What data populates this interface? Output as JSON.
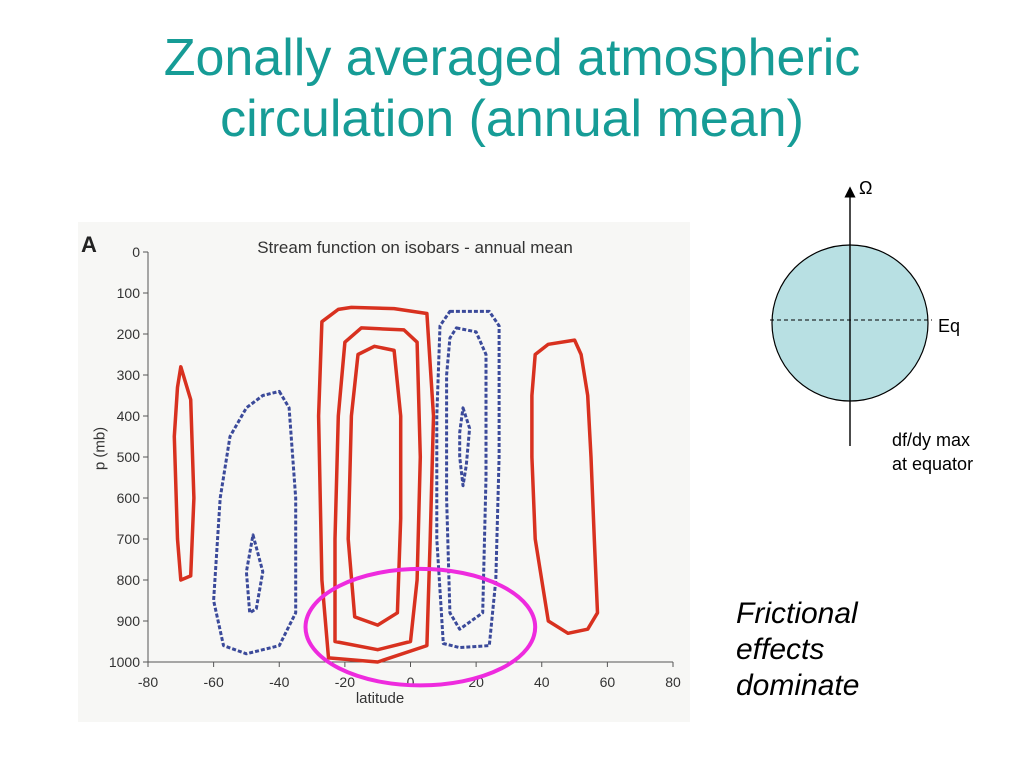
{
  "slide": {
    "title_line1": "Zonally averaged atmospheric",
    "title_line2": "circulation (annual mean)"
  },
  "panel_label": "A",
  "chart_data": {
    "type": "contour",
    "title": "Stream function on isobars - annual mean",
    "xlabel": "latitude",
    "ylabel": "p (mb)",
    "xlim": [
      -80,
      80
    ],
    "ylim": [
      1000,
      0
    ],
    "x_ticks": [
      "-80",
      "-60",
      "-40",
      "-20",
      "0",
      "20",
      "40",
      "60",
      "80"
    ],
    "y_ticks": [
      "0",
      "100",
      "200",
      "300",
      "400",
      "500",
      "600",
      "700",
      "800",
      "900",
      "1000"
    ],
    "grid": false,
    "series": [
      {
        "style": "solid",
        "color": "#d8311f",
        "points": [
          [
            -70,
            280
          ],
          [
            -67,
            360
          ],
          [
            -66,
            600
          ],
          [
            -67,
            790
          ],
          [
            -70,
            800
          ],
          [
            -71,
            700
          ],
          [
            -72,
            450
          ],
          [
            -71,
            330
          ]
        ]
      },
      {
        "style": "dashed",
        "color": "#3b4a9a",
        "points": [
          [
            -40,
            340
          ],
          [
            -37,
            380
          ],
          [
            -35,
            600
          ],
          [
            -35,
            880
          ],
          [
            -40,
            960
          ],
          [
            -50,
            980
          ],
          [
            -57,
            960
          ],
          [
            -60,
            850
          ],
          [
            -58,
            600
          ],
          [
            -55,
            450
          ],
          [
            -50,
            380
          ],
          [
            -45,
            350
          ]
        ]
      },
      {
        "style": "dashed",
        "color": "#3b4a9a",
        "points": [
          [
            -48,
            690
          ],
          [
            -45,
            780
          ],
          [
            -47,
            870
          ],
          [
            -49,
            880
          ],
          [
            -50,
            780
          ]
        ]
      },
      {
        "style": "solid",
        "color": "#d8311f",
        "points": [
          [
            -18,
            135
          ],
          [
            -5,
            138
          ],
          [
            5,
            150
          ],
          [
            7,
            400
          ],
          [
            6,
            700
          ],
          [
            5,
            960
          ],
          [
            -10,
            1000
          ],
          [
            -25,
            990
          ],
          [
            -27,
            800
          ],
          [
            -28,
            400
          ],
          [
            -27,
            170
          ],
          [
            -22,
            140
          ]
        ]
      },
      {
        "style": "solid",
        "color": "#d8311f",
        "points": [
          [
            -15,
            185
          ],
          [
            -2,
            190
          ],
          [
            2,
            220
          ],
          [
            3,
            500
          ],
          [
            2,
            800
          ],
          [
            0,
            950
          ],
          [
            -10,
            970
          ],
          [
            -23,
            950
          ],
          [
            -23,
            700
          ],
          [
            -22,
            400
          ],
          [
            -20,
            220
          ]
        ]
      },
      {
        "style": "solid",
        "color": "#d8311f",
        "points": [
          [
            -11,
            230
          ],
          [
            -5,
            240
          ],
          [
            -3,
            400
          ],
          [
            -3,
            650
          ],
          [
            -4,
            880
          ],
          [
            -10,
            910
          ],
          [
            -17,
            890
          ],
          [
            -19,
            700
          ],
          [
            -18,
            400
          ],
          [
            -16,
            250
          ]
        ]
      },
      {
        "style": "dashed",
        "color": "#3b4a9a",
        "points": [
          [
            12,
            145
          ],
          [
            24,
            145
          ],
          [
            27,
            180
          ],
          [
            27,
            500
          ],
          [
            26,
            800
          ],
          [
            24,
            960
          ],
          [
            15,
            965
          ],
          [
            10,
            955
          ],
          [
            8,
            700
          ],
          [
            8,
            400
          ],
          [
            9,
            180
          ]
        ]
      },
      {
        "style": "dashed",
        "color": "#3b4a9a",
        "points": [
          [
            14,
            185
          ],
          [
            20,
            195
          ],
          [
            23,
            250
          ],
          [
            23,
            550
          ],
          [
            22,
            880
          ],
          [
            15,
            920
          ],
          [
            12,
            880
          ],
          [
            11,
            600
          ],
          [
            11,
            300
          ],
          [
            12,
            210
          ]
        ]
      },
      {
        "style": "dashed",
        "color": "#3b4a9a",
        "points": [
          [
            16,
            380
          ],
          [
            18,
            430
          ],
          [
            17,
            520
          ],
          [
            16,
            570
          ],
          [
            15,
            500
          ],
          [
            15,
            440
          ]
        ]
      },
      {
        "style": "solid",
        "color": "#d8311f",
        "points": [
          [
            42,
            225
          ],
          [
            50,
            215
          ],
          [
            52,
            250
          ],
          [
            54,
            350
          ],
          [
            55,
            500
          ],
          [
            56,
            700
          ],
          [
            57,
            880
          ],
          [
            54,
            920
          ],
          [
            48,
            930
          ],
          [
            42,
            900
          ],
          [
            38,
            700
          ],
          [
            37,
            500
          ],
          [
            37,
            350
          ],
          [
            38,
            250
          ]
        ]
      },
      {
        "style": "highlight-ellipse",
        "color": "#ee2bde",
        "center": [
          3,
          915
        ],
        "radius_x": 35,
        "radius_y": 142
      }
    ]
  },
  "inset_diagram": {
    "omega_label": "Ω",
    "equator_label": "Eq",
    "note_line1": "df/dy max",
    "note_line2": "at equator",
    "fill_color": "#b8e0e3"
  },
  "annotation": {
    "line1": "Frictional",
    "line2": "effects",
    "line3": "dominate"
  },
  "colors": {
    "title": "#169c96",
    "positive_contour": "#d8311f",
    "negative_contour": "#3b4a9a",
    "highlight": "#ee2bde"
  }
}
